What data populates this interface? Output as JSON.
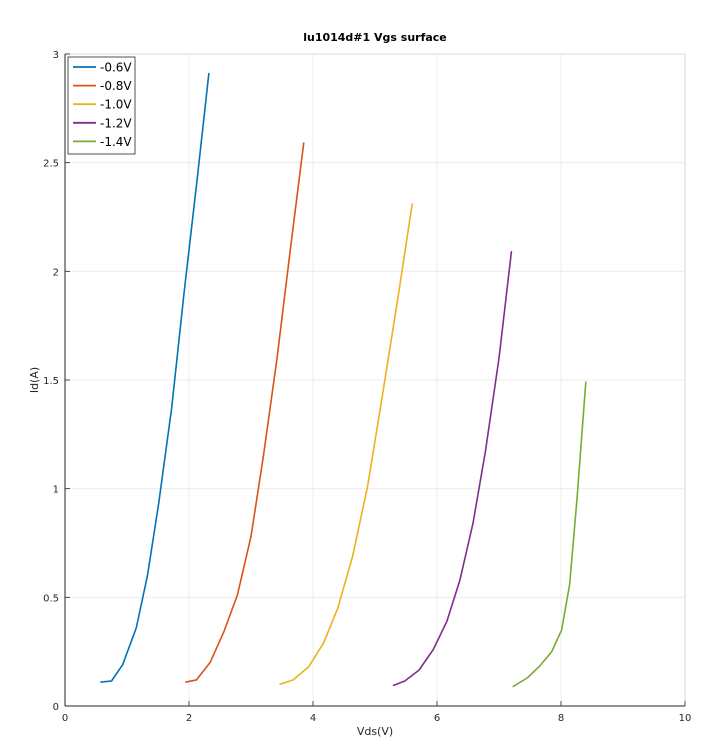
{
  "chart_data": {
    "type": "line",
    "title": "lu1014d#1 Vgs surface",
    "xlabel": "Vds(V)",
    "ylabel": "Id(A)",
    "xlim": [
      0,
      10
    ],
    "ylim": [
      0,
      3
    ],
    "xticks": [
      0,
      2,
      4,
      6,
      8,
      10
    ],
    "xtick_labels": [
      "0",
      "2",
      "4",
      "6",
      "8",
      "10"
    ],
    "yticks": [
      0,
      0.5,
      1,
      1.5,
      2,
      2.5,
      3
    ],
    "ytick_labels": [
      "0",
      "0.5",
      "1",
      "1.5",
      "2",
      "2.5",
      "3"
    ],
    "grid": true,
    "legend_position": "top-left",
    "series": [
      {
        "name": "-0.6V",
        "color": "#0072BD",
        "x": [
          0.58,
          0.75,
          0.93,
          1.15,
          1.33,
          1.51,
          1.72,
          1.92,
          2.13,
          2.32
        ],
        "y": [
          0.11,
          0.115,
          0.19,
          0.36,
          0.6,
          0.93,
          1.37,
          1.9,
          2.42,
          2.91
        ]
      },
      {
        "name": "-0.8V",
        "color": "#D95319",
        "x": [
          1.95,
          2.12,
          2.34,
          2.56,
          2.78,
          3.0,
          3.2,
          3.42,
          3.63,
          3.85
        ],
        "y": [
          0.11,
          0.12,
          0.2,
          0.34,
          0.51,
          0.78,
          1.15,
          1.6,
          2.09,
          2.59
        ]
      },
      {
        "name": "-1.0V",
        "color": "#EDB120",
        "x": [
          3.47,
          3.68,
          3.93,
          4.17,
          4.4,
          4.64,
          4.88,
          5.12,
          5.36,
          5.6
        ],
        "y": [
          0.1,
          0.12,
          0.18,
          0.29,
          0.45,
          0.69,
          1.01,
          1.43,
          1.86,
          2.31
        ]
      },
      {
        "name": "-1.2V",
        "color": "#7E2F8E",
        "x": [
          5.3,
          5.48,
          5.71,
          5.94,
          6.16,
          6.37,
          6.58,
          6.78,
          7.0,
          7.2
        ],
        "y": [
          0.095,
          0.115,
          0.165,
          0.26,
          0.39,
          0.58,
          0.84,
          1.17,
          1.6,
          2.09
        ]
      },
      {
        "name": "-1.4V",
        "color": "#77AC30",
        "x": [
          7.23,
          7.46,
          7.66,
          7.85,
          8.01,
          8.14,
          8.26,
          8.4
        ],
        "y": [
          0.09,
          0.13,
          0.185,
          0.25,
          0.35,
          0.56,
          0.96,
          1.49
        ]
      }
    ]
  }
}
